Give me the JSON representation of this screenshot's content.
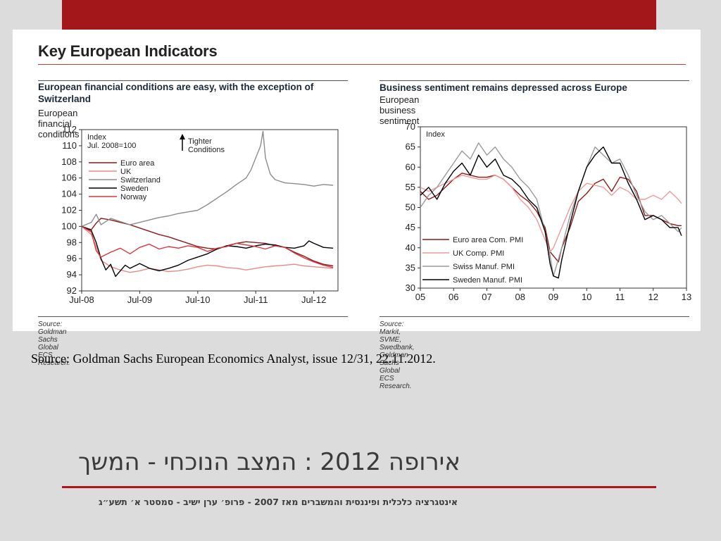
{
  "slide": {
    "source_note": "Source: Goldman Sachs European Economics Analyst, issue 12/31, 22.11.2012.",
    "title": "אירופה 2012 : המצב הנוכחי - המשך",
    "footer": "אינטגרציה כלכלית ופיננסית והמשברים מאז 2007 - פרופ׳ ערן ישיב - סמסטר א׳ תשע״ג"
  },
  "figure": {
    "title": "Key European Indicators"
  },
  "colors": {
    "accent_red": "#a3161a",
    "euro_area": "#8b1a1a",
    "uk": "#e88a8a",
    "switzerland": "#8c8c8c",
    "sweden": "#000000",
    "norway": "#d9363e"
  },
  "chart_data": [
    {
      "type": "line",
      "title": "European financial conditions are easy, with the exception of Switzerland",
      "subtitle": "European financial conditions",
      "index_label": [
        "Index",
        "Jul. 2008=100"
      ],
      "annotation": [
        "Tighter",
        "Conditions"
      ],
      "source": "Source: Goldman Sachs Global ECS Research.",
      "x_tick_labels": [
        "Jul-08",
        "Jul-09",
        "Jul-10",
        "Jul-11",
        "Jul-12"
      ],
      "x_tick_positions": [
        0,
        12,
        24,
        36,
        48
      ],
      "xlim": [
        0,
        53
      ],
      "ylim": [
        92,
        112
      ],
      "y_ticks": [
        92,
        94,
        96,
        98,
        100,
        102,
        104,
        106,
        108,
        110,
        112
      ],
      "legend_position": "top-left",
      "series": [
        {
          "name": "Euro area",
          "color": "#8b1a1a",
          "x": [
            0,
            2,
            3,
            4,
            6,
            8,
            10,
            12,
            14,
            16,
            18,
            20,
            22,
            24,
            26,
            28,
            30,
            32,
            34,
            36,
            38,
            40,
            42,
            44,
            46,
            48,
            50,
            52
          ],
          "y": [
            100,
            99.6,
            100.4,
            101,
            100.8,
            100.5,
            100.2,
            99.8,
            99.4,
            99,
            98.7,
            98.3,
            97.9,
            97.5,
            97.3,
            97.2,
            97.6,
            97.9,
            98.1,
            98,
            97.9,
            97.6,
            97.4,
            96.8,
            96.3,
            95.7,
            95.3,
            95.1
          ]
        },
        {
          "name": "UK",
          "color": "#e88a8a",
          "x": [
            0,
            2,
            3,
            4,
            6,
            8,
            10,
            12,
            14,
            16,
            18,
            20,
            22,
            24,
            26,
            28,
            30,
            32,
            34,
            36,
            38,
            40,
            42,
            44,
            46,
            48,
            50,
            52
          ],
          "y": [
            100,
            99,
            97.5,
            95.8,
            95,
            94.6,
            94.3,
            94.5,
            94.8,
            94.6,
            94.4,
            94.5,
            94.7,
            95,
            95.2,
            95.1,
            94.9,
            94.8,
            94.6,
            94.8,
            95,
            95.1,
            95.2,
            95.3,
            95.1,
            95,
            94.9,
            94.8
          ]
        },
        {
          "name": "Switzerland",
          "color": "#8c8c8c",
          "x": [
            0,
            2,
            3,
            4,
            6,
            8,
            10,
            12,
            14,
            16,
            18,
            20,
            22,
            24,
            26,
            28,
            30,
            32,
            34,
            35,
            36,
            37,
            37.5,
            38,
            39,
            40,
            42,
            44,
            46,
            48,
            50,
            52
          ],
          "y": [
            100,
            100.5,
            101.5,
            100.2,
            101,
            100.6,
            100.2,
            100.5,
            100.8,
            101.1,
            101.3,
            101.6,
            101.8,
            102,
            102.7,
            103.5,
            104.3,
            105.2,
            106,
            107,
            108.5,
            110,
            111.8,
            108.5,
            106.5,
            105.8,
            105.4,
            105.3,
            105.2,
            105,
            105.2,
            105.1
          ]
        },
        {
          "name": "Sweden",
          "color": "#000000",
          "x": [
            0,
            2,
            3,
            4,
            5,
            6,
            7,
            8,
            9,
            10,
            12,
            14,
            16,
            18,
            20,
            22,
            24,
            26,
            28,
            30,
            32,
            34,
            36,
            38,
            40,
            42,
            44,
            46,
            47,
            48,
            50,
            52
          ],
          "y": [
            100,
            99.5,
            98,
            96,
            94.6,
            95.3,
            93.8,
            94.5,
            95.2,
            94.8,
            95.4,
            94.8,
            94.5,
            94.8,
            95.2,
            95.8,
            96.2,
            96.6,
            97.2,
            97.6,
            97.5,
            97.3,
            97.6,
            97.8,
            97.7,
            97.4,
            97.3,
            97.6,
            98.2,
            97.9,
            97.4,
            97.3
          ]
        },
        {
          "name": "Norway",
          "color": "#d9363e",
          "x": [
            0,
            2,
            3,
            4,
            6,
            8,
            10,
            12,
            14,
            16,
            18,
            20,
            22,
            24,
            26,
            28,
            30,
            32,
            34,
            36,
            38,
            40,
            42,
            44,
            46,
            48,
            50,
            52
          ],
          "y": [
            100,
            99.3,
            97,
            96.2,
            96.8,
            97.3,
            96.6,
            97.4,
            97.8,
            97.2,
            97.5,
            97.3,
            97.6,
            97.4,
            96.9,
            97.3,
            97.5,
            97.9,
            97.7,
            97.5,
            97.2,
            97.6,
            97.4,
            96.7,
            96.1,
            95.6,
            95.2,
            94.9
          ]
        }
      ]
    },
    {
      "type": "line",
      "title": "Business sentiment remains depressed across Europe",
      "subtitle": "European business sentiment",
      "index_label": [
        "Index"
      ],
      "source": "Source: Markit, SVME, Swedbank, Goldman Sachs Global ECS Research.",
      "x_tick_labels": [
        "05",
        "06",
        "07",
        "08",
        "09",
        "10",
        "11",
        "12",
        "13"
      ],
      "x_tick_positions": [
        2005,
        2006,
        2007,
        2008,
        2009,
        2010,
        2011,
        2012,
        2013
      ],
      "xlim": [
        2005,
        2013
      ],
      "ylim": [
        30,
        70
      ],
      "y_ticks": [
        30,
        35,
        40,
        45,
        50,
        55,
        60,
        65,
        70
      ],
      "legend_position": "bottom-left",
      "series": [
        {
          "name": "Euro area  Com. PMI",
          "color": "#8b1a1a",
          "x": [
            2005,
            2005.25,
            2005.5,
            2005.75,
            2006,
            2006.25,
            2006.5,
            2006.75,
            2007,
            2007.25,
            2007.5,
            2007.75,
            2008,
            2008.25,
            2008.5,
            2008.75,
            2008.9,
            2009,
            2009.15,
            2009.25,
            2009.5,
            2009.75,
            2010,
            2010.25,
            2010.5,
            2010.75,
            2011,
            2011.25,
            2011.5,
            2011.75,
            2012,
            2012.25,
            2012.5,
            2012.75,
            2012.85
          ],
          "y": [
            54,
            52,
            53,
            55,
            57,
            58.5,
            58,
            57.5,
            57.5,
            58,
            57,
            55,
            53,
            51.5,
            49,
            45,
            39,
            38,
            36.5,
            40,
            45,
            51.5,
            53.5,
            56,
            57,
            54,
            57.5,
            57,
            54,
            48,
            48,
            47,
            46,
            45.5,
            45.5
          ]
        },
        {
          "name": "UK Comp. PMI",
          "color": "#f09a9a",
          "x": [
            2005,
            2005.25,
            2005.5,
            2005.75,
            2006,
            2006.25,
            2006.5,
            2006.75,
            2007,
            2007.25,
            2007.5,
            2007.75,
            2008,
            2008.25,
            2008.5,
            2008.75,
            2008.9,
            2009,
            2009.25,
            2009.5,
            2009.75,
            2010,
            2010.25,
            2010.5,
            2010.75,
            2011,
            2011.25,
            2011.5,
            2011.75,
            2012,
            2012.25,
            2012.5,
            2012.75,
            2012.85
          ],
          "y": [
            55,
            54,
            55,
            56,
            57,
            58,
            57.5,
            57,
            57,
            58,
            57,
            55,
            52,
            50,
            47,
            42,
            39,
            40,
            45,
            50,
            54,
            56,
            55.5,
            55,
            53,
            55,
            54,
            52,
            52,
            53,
            52,
            54,
            52,
            51
          ]
        },
        {
          "name": "Swiss Manuf. PMI",
          "color": "#9a9a9a",
          "x": [
            2005,
            2005.25,
            2005.5,
            2005.75,
            2006,
            2006.25,
            2006.5,
            2006.75,
            2007,
            2007.25,
            2007.5,
            2007.75,
            2008,
            2008.25,
            2008.5,
            2008.75,
            2008.9,
            2009,
            2009.25,
            2009.5,
            2009.75,
            2010,
            2010.25,
            2010.5,
            2010.75,
            2011,
            2011.25,
            2011.5,
            2011.75,
            2012,
            2012.25,
            2012.5,
            2012.75,
            2012.85
          ],
          "y": [
            50,
            53,
            55,
            58,
            61,
            64,
            62,
            66,
            63,
            65,
            62,
            60,
            57,
            55,
            52,
            44,
            38,
            33,
            40,
            48,
            54,
            60,
            65,
            63,
            61,
            62,
            58,
            53,
            49,
            47,
            48,
            46,
            44,
            45
          ]
        },
        {
          "name": "Sweden Manuf. PMI",
          "color": "#000000",
          "x": [
            2005,
            2005.25,
            2005.5,
            2005.75,
            2006,
            2006.25,
            2006.5,
            2006.75,
            2007,
            2007.25,
            2007.5,
            2007.75,
            2008,
            2008.25,
            2008.5,
            2008.75,
            2008.9,
            2009,
            2009.15,
            2009.25,
            2009.5,
            2009.75,
            2010,
            2010.25,
            2010.5,
            2010.75,
            2011,
            2011.25,
            2011.5,
            2011.75,
            2012,
            2012.25,
            2012.5,
            2012.75,
            2012.85
          ],
          "y": [
            53,
            55,
            52,
            56,
            59,
            61,
            58,
            63,
            60,
            62,
            58,
            57,
            55,
            52,
            50,
            44,
            36,
            33,
            32.5,
            37,
            46,
            54,
            60,
            63,
            65,
            61,
            61,
            56,
            52,
            47,
            48,
            47,
            45,
            45,
            43
          ]
        }
      ]
    }
  ]
}
